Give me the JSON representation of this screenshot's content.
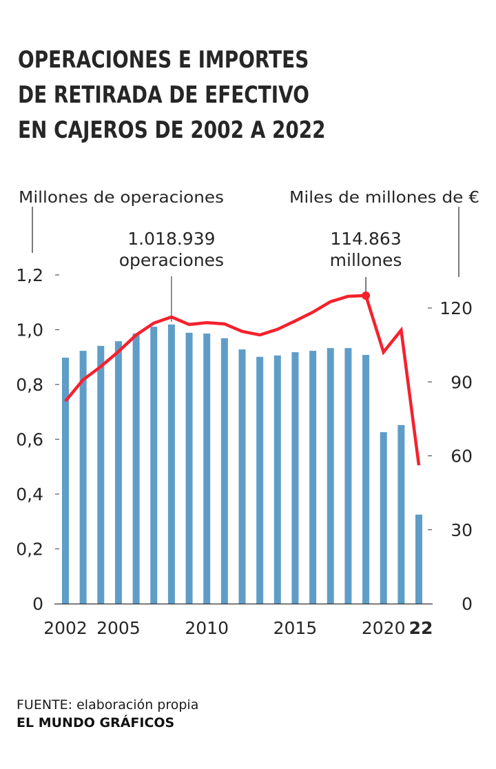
{
  "title_lines": [
    "OPERACIONES E IMPORTES",
    "DE RETIRADA DE EFECTIVO",
    "EN CAJEROS DE 2002 A 2022"
  ],
  "footer": {
    "source": "FUENTE: elaboración propia",
    "credit": "EL MUNDO GRÁFICOS"
  },
  "colors": {
    "bars": "#5f9dc8",
    "line": "#f5212c",
    "text": "#262626"
  },
  "chart_data": {
    "type": "bar+line",
    "title": "OPERACIONES E IMPORTES DE RETIRADA DE EFECTIVO EN CAJEROS DE 2002 A 2022",
    "x": [
      2002,
      2003,
      2004,
      2005,
      2006,
      2007,
      2008,
      2009,
      2010,
      2011,
      2012,
      2013,
      2014,
      2015,
      2016,
      2017,
      2018,
      2019,
      2020,
      2021,
      2022
    ],
    "x_tick_labels": [
      {
        "year": 2002,
        "label": "2002",
        "bold": false
      },
      {
        "year": 2005,
        "label": "2005",
        "bold": false
      },
      {
        "year": 2010,
        "label": "2010",
        "bold": false
      },
      {
        "year": 2015,
        "label": "2015",
        "bold": false
      },
      {
        "year": 2020,
        "label": "2020",
        "bold": false
      },
      {
        "year": 2022,
        "label": "22",
        "bold": true
      }
    ],
    "series": [
      {
        "name": "Millones de operaciones",
        "type": "bar",
        "axis": "left",
        "values": [
          0.898,
          0.923,
          0.941,
          0.958,
          0.986,
          1.011,
          1.019,
          0.989,
          0.986,
          0.969,
          0.928,
          0.901,
          0.906,
          0.918,
          0.923,
          0.933,
          0.933,
          0.908,
          0.626,
          0.652,
          0.325
        ]
      },
      {
        "name": "Miles de millones de €",
        "type": "line",
        "axis": "right",
        "values": [
          75.5,
          83.5,
          88.4,
          94.0,
          100.2,
          104.6,
          106.9,
          104.1,
          104.8,
          104.3,
          101.5,
          100.2,
          102.3,
          105.4,
          108.7,
          112.6,
          114.6,
          114.863,
          93.8,
          102.0,
          51.6
        ]
      }
    ],
    "left_axis": {
      "label": "Millones de operaciones",
      "ylim": [
        0,
        1.2
      ],
      "ticks": [
        {
          "value": 0,
          "label": "0"
        },
        {
          "value": 0.2,
          "label": "0,2"
        },
        {
          "value": 0.4,
          "label": "0,4"
        },
        {
          "value": 0.6,
          "label": "0,6"
        },
        {
          "value": 0.8,
          "label": "0,8"
        },
        {
          "value": 1.0,
          "label": "1,0"
        },
        {
          "value": 1.2,
          "label": "1,2"
        }
      ]
    },
    "right_axis": {
      "label": "Miles de millones de €",
      "ylim": [
        0,
        120
      ],
      "ticks": [
        {
          "value": 0,
          "label": "0"
        },
        {
          "value": 30,
          "label": "30"
        },
        {
          "value": 60,
          "label": "60"
        },
        {
          "value": 90,
          "label": "90"
        },
        {
          "value": 120,
          "label": "120"
        }
      ]
    },
    "annotations": [
      {
        "series": "bar",
        "year": 2008,
        "lines": [
          "1.018.939",
          "operaciones"
        ]
      },
      {
        "series": "line",
        "year": 2019,
        "lines": [
          "114.863",
          "millones"
        ]
      }
    ],
    "grid": false,
    "legend": "none"
  }
}
